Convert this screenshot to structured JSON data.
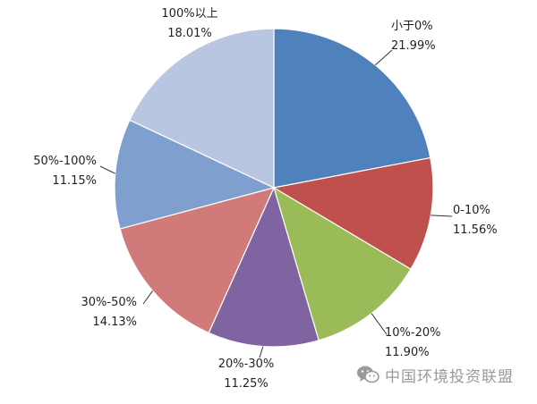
{
  "chart_data": {
    "type": "pie",
    "title": "",
    "start_angle_deg": 0,
    "direction": "clockwise",
    "slices": [
      {
        "label": "小于0%",
        "value_text": "21.99%",
        "value": 21.99,
        "color": "#4f81bd"
      },
      {
        "label": "0-10%",
        "value_text": "11.56%",
        "value": 11.56,
        "color": "#c0504d"
      },
      {
        "label": "10%-20%",
        "value_text": "11.90%",
        "value": 11.9,
        "color": "#9bbb59"
      },
      {
        "label": "20%-30%",
        "value_text": "11.25%",
        "value": 11.25,
        "color": "#8064a2"
      },
      {
        "label": "30%-50%",
        "value_text": "14.13%",
        "value": 14.13,
        "color": "#d07b7a"
      },
      {
        "label": "50%-100%",
        "value_text": "11.15%",
        "value": 11.15,
        "color": "#7f9fcf"
      },
      {
        "label": "100%以上",
        "value_text": "18.01%",
        "value": 18.01,
        "color": "#b9c6e1"
      }
    ]
  },
  "watermark": {
    "text": "中国环境投资联盟",
    "icon": "wechat-icon"
  }
}
